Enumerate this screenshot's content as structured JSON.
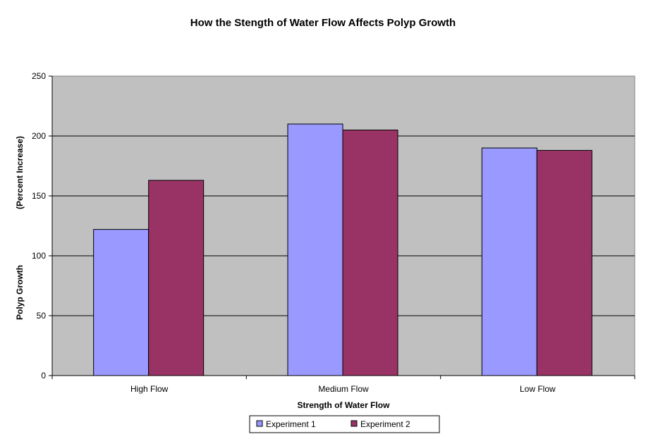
{
  "chart_data": {
    "type": "bar",
    "title": "How the Stength of Water Flow Affects Polyp Growth",
    "xlabel": "Strength of Water Flow",
    "ylabel_line1": "Polyp Growth",
    "ylabel_line2": "(Percent Increase)",
    "categories": [
      "High Flow",
      "Medium Flow",
      "Low Flow"
    ],
    "series": [
      {
        "name": "Experiment 1",
        "color": "#9999ff",
        "values": [
          122,
          210,
          190
        ]
      },
      {
        "name": "Experiment 2",
        "color": "#993366",
        "values": [
          163,
          205,
          188
        ]
      }
    ],
    "ylim": [
      0,
      250
    ],
    "yticks": [
      0,
      50,
      100,
      150,
      200,
      250
    ],
    "grid": true,
    "legend_position": "bottom",
    "plot_background": "#c0c0c0"
  }
}
